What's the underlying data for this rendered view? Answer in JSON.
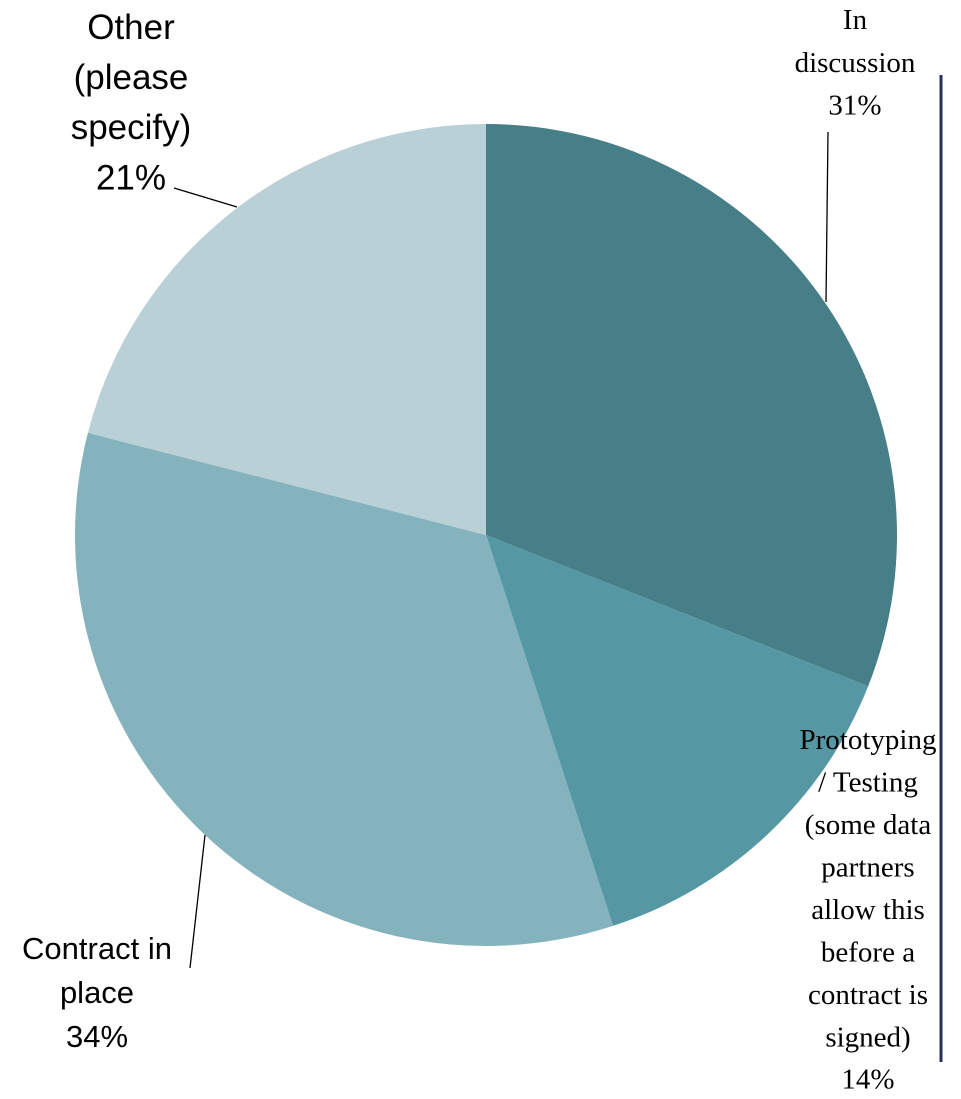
{
  "chart_data": {
    "type": "pie",
    "categories": [
      "In discussion",
      "Prototyping / Testing (some data partners allow this before a contract is signed)",
      "Contract in place",
      "Other (please specify)"
    ],
    "values": [
      31,
      14,
      34,
      21
    ],
    "value_labels": [
      "31%",
      "14%",
      "34%",
      "21%"
    ],
    "colors": [
      "#477f89",
      "#5597a2",
      "#85b3bd",
      "#b9d0d6"
    ]
  }
}
